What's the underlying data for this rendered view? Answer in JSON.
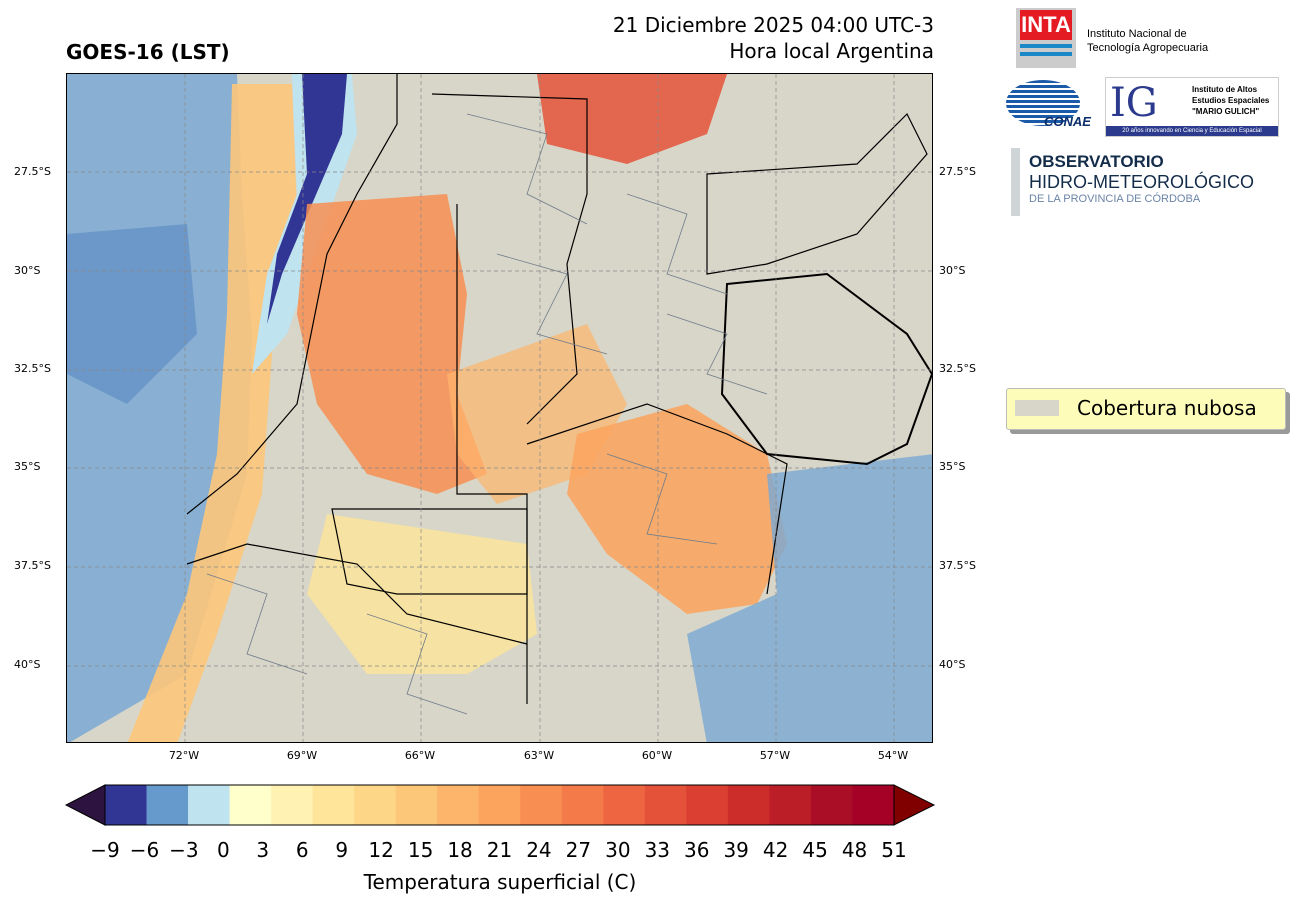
{
  "header": {
    "title_left": "GOES-16 (LST)",
    "date_line": "21 Diciembre 2025 04:00 UTC-3",
    "subtitle_line": "Hora local Argentina"
  },
  "map": {
    "lat_ticks": [
      "27.5°S",
      "30°S",
      "32.5°S",
      "35°S",
      "37.5°S",
      "40°S"
    ],
    "lon_ticks": [
      "72°W",
      "69°W",
      "66°W",
      "63°W",
      "60°W",
      "57°W",
      "54°W"
    ],
    "cloud_color": "#d8d6c8"
  },
  "colorbar": {
    "title": "Temperatura superficial (C)",
    "labels": [
      "−9",
      "−6",
      "−3",
      "0",
      "3",
      "6",
      "9",
      "12",
      "15",
      "18",
      "21",
      "24",
      "27",
      "30",
      "33",
      "36",
      "39",
      "42",
      "45",
      "48",
      "51"
    ],
    "colors": [
      "#313695",
      "#6699cc",
      "#bfe3ef",
      "#ffffcc",
      "#fff2b2",
      "#fee599",
      "#fed687",
      "#fdc77a",
      "#fdb56b",
      "#fca35d",
      "#f88e52",
      "#f47b49",
      "#ee6641",
      "#e5523a",
      "#da3f31",
      "#cd2d2a",
      "#bc1e27",
      "#aa0e26",
      "#a50026"
    ],
    "under_color": "#2d1440",
    "over_color": "#800000"
  },
  "legend": {
    "label": "Cobertura nubosa"
  },
  "logos": {
    "inta_letters": "INTA",
    "inta_line1": "Instituto Nacional de",
    "inta_line2": "Tecnología Agropecuaria",
    "conae": "CONAE",
    "ig_letters": "IG",
    "ig_line1": "Instituto de Altos",
    "ig_line2": "Estudios Espaciales",
    "ig_line3": "\"MARIO GULICH\"",
    "ig_tagline": "20 años innovando en Ciencia y Educación Espacial",
    "ohm_line1": "OBSERVATORIO",
    "ohm_line2": "HIDRO-METEOROLÓGICO",
    "ohm_line3": "DE LA PROVINCIA DE CÓRDOBA"
  }
}
